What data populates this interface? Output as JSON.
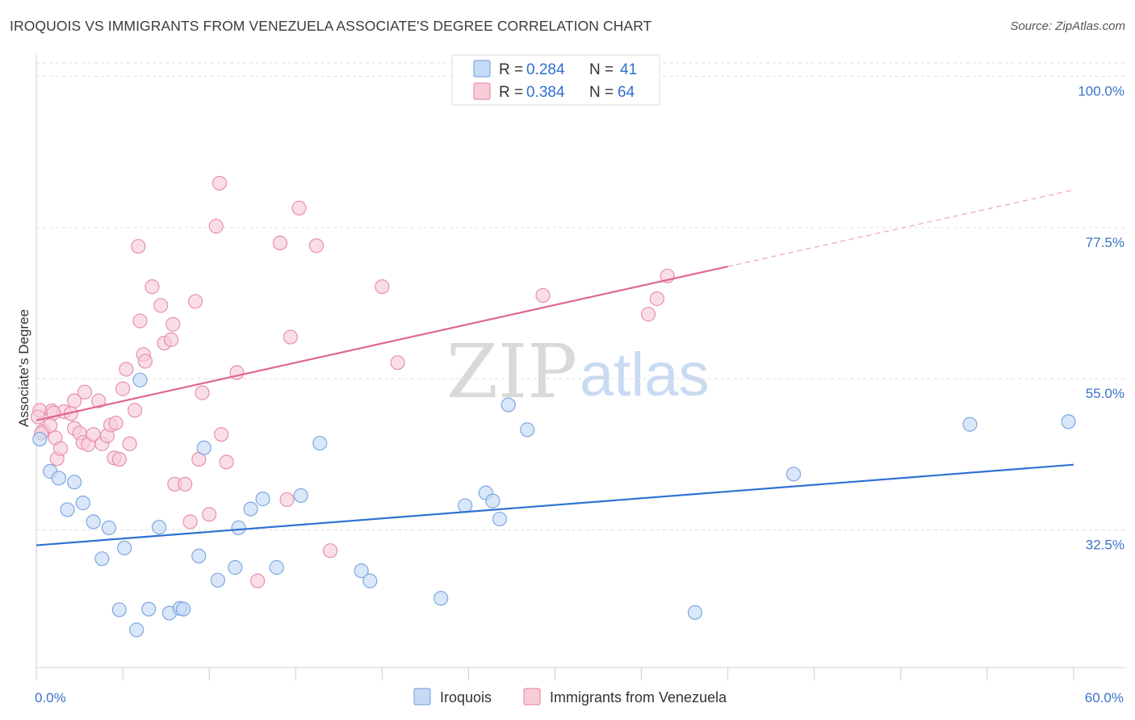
{
  "title": "IROQUOIS VS IMMIGRANTS FROM VENEZUELA ASSOCIATE'S DEGREE CORRELATION CHART",
  "source": "Source: ZipAtlas.com",
  "watermark": {
    "part1": "ZIP",
    "part2": "atlas"
  },
  "colors": {
    "blue_fill": "#c5daf6",
    "blue_stroke": "#7fa8e0",
    "blue_line": "#2e72d2",
    "pink_fill": "#f8cdd8",
    "pink_stroke": "#e890aa",
    "pink_line": "#e0668f",
    "tick_text": "#3b73c8"
  },
  "legend": {
    "r_label": "R =",
    "n_label": "N =",
    "series": [
      {
        "r": "0.284",
        "n": "41"
      },
      {
        "r": "0.384",
        "n": "64"
      }
    ]
  },
  "chart_data": {
    "type": "scatter",
    "title": "IROQUOIS VS IMMIGRANTS FROM VENEZUELA ASSOCIATE'S DEGREE CORRELATION CHART",
    "xlabel": "",
    "ylabel": "Associate's Degree",
    "xlim": [
      0,
      60
    ],
    "ylim": [
      12,
      102
    ],
    "x_ticks": [
      {
        "v": 0,
        "label": "0.0%"
      },
      {
        "v": 60,
        "label": "60.0%"
      }
    ],
    "y_ticks": [
      {
        "v": 32.5,
        "label": "32.5%"
      },
      {
        "v": 55.0,
        "label": "55.0%"
      },
      {
        "v": 77.5,
        "label": "77.5%"
      },
      {
        "v": 100.0,
        "label": "100.0%"
      }
    ],
    "series": [
      {
        "name": "Iroquois",
        "color": "blue",
        "trend": {
          "x0": 0,
          "y0": 30.2,
          "x1": 60,
          "y1": 42.2
        },
        "points": [
          [
            0.2,
            46.0
          ],
          [
            0.8,
            41.2
          ],
          [
            1.3,
            40.2
          ],
          [
            2.2,
            39.6
          ],
          [
            1.8,
            35.5
          ],
          [
            2.7,
            36.5
          ],
          [
            3.3,
            33.7
          ],
          [
            4.2,
            32.8
          ],
          [
            3.8,
            28.2
          ],
          [
            4.8,
            20.6
          ],
          [
            5.1,
            29.8
          ],
          [
            5.8,
            17.6
          ],
          [
            6.0,
            54.8
          ],
          [
            6.5,
            20.7
          ],
          [
            7.1,
            32.9
          ],
          [
            7.7,
            20.1
          ],
          [
            8.3,
            20.8
          ],
          [
            8.5,
            20.7
          ],
          [
            9.4,
            28.6
          ],
          [
            9.7,
            44.7
          ],
          [
            10.5,
            25.0
          ],
          [
            11.5,
            26.9
          ],
          [
            11.7,
            32.8
          ],
          [
            12.4,
            35.6
          ],
          [
            13.1,
            37.1
          ],
          [
            13.9,
            26.9
          ],
          [
            15.3,
            37.6
          ],
          [
            16.4,
            45.4
          ],
          [
            18.8,
            26.4
          ],
          [
            19.3,
            24.9
          ],
          [
            23.4,
            22.3
          ],
          [
            24.8,
            36.1
          ],
          [
            26.0,
            38.0
          ],
          [
            26.4,
            36.8
          ],
          [
            26.8,
            34.1
          ],
          [
            27.3,
            51.1
          ],
          [
            28.4,
            47.4
          ],
          [
            38.1,
            20.2
          ],
          [
            43.8,
            40.8
          ],
          [
            54.0,
            48.2
          ],
          [
            59.7,
            48.6
          ]
        ]
      },
      {
        "name": "Immigrants from Venezuela",
        "color": "pink",
        "trend": {
          "x0": 0,
          "y0": 48.8,
          "x1": 40,
          "y1": 71.7
        },
        "trend_ext": {
          "x0": 40,
          "y0": 71.7,
          "x1": 60,
          "y1": 83.1
        },
        "points": [
          [
            0.2,
            50.3
          ],
          [
            0.4,
            47.2
          ],
          [
            0.8,
            48.0
          ],
          [
            0.9,
            50.2
          ],
          [
            1.1,
            46.2
          ],
          [
            1.2,
            43.1
          ],
          [
            1.4,
            44.6
          ],
          [
            1.6,
            50.1
          ],
          [
            2.0,
            49.8
          ],
          [
            2.2,
            47.6
          ],
          [
            2.2,
            51.7
          ],
          [
            2.5,
            46.9
          ],
          [
            2.7,
            45.5
          ],
          [
            2.8,
            53.0
          ],
          [
            3.0,
            45.2
          ],
          [
            3.3,
            46.7
          ],
          [
            3.6,
            51.7
          ],
          [
            3.8,
            45.3
          ],
          [
            4.1,
            46.5
          ],
          [
            4.3,
            48.1
          ],
          [
            4.5,
            43.2
          ],
          [
            4.6,
            48.4
          ],
          [
            4.8,
            43.0
          ],
          [
            5.0,
            53.5
          ],
          [
            5.2,
            56.4
          ],
          [
            5.4,
            45.3
          ],
          [
            5.7,
            50.3
          ],
          [
            5.9,
            74.7
          ],
          [
            6.0,
            63.6
          ],
          [
            6.2,
            58.6
          ],
          [
            6.3,
            57.6
          ],
          [
            6.7,
            68.7
          ],
          [
            7.2,
            65.9
          ],
          [
            7.4,
            60.3
          ],
          [
            7.8,
            60.8
          ],
          [
            7.9,
            63.1
          ],
          [
            8.0,
            39.3
          ],
          [
            8.6,
            39.3
          ],
          [
            8.9,
            33.7
          ],
          [
            9.2,
            66.5
          ],
          [
            9.4,
            43.0
          ],
          [
            9.6,
            52.9
          ],
          [
            10.0,
            34.8
          ],
          [
            10.4,
            77.7
          ],
          [
            10.6,
            84.1
          ],
          [
            10.7,
            46.7
          ],
          [
            11.0,
            42.6
          ],
          [
            11.6,
            55.9
          ],
          [
            12.8,
            24.9
          ],
          [
            14.1,
            75.2
          ],
          [
            14.5,
            37.0
          ],
          [
            14.7,
            61.2
          ],
          [
            15.2,
            80.4
          ],
          [
            16.2,
            74.8
          ],
          [
            17.0,
            29.4
          ],
          [
            20.0,
            68.7
          ],
          [
            20.9,
            57.4
          ],
          [
            29.3,
            67.4
          ],
          [
            35.4,
            64.6
          ],
          [
            35.9,
            66.9
          ],
          [
            36.5,
            70.3
          ],
          [
            0.1,
            49.3
          ],
          [
            0.3,
            46.9
          ],
          [
            1.0,
            49.9
          ]
        ]
      }
    ]
  }
}
